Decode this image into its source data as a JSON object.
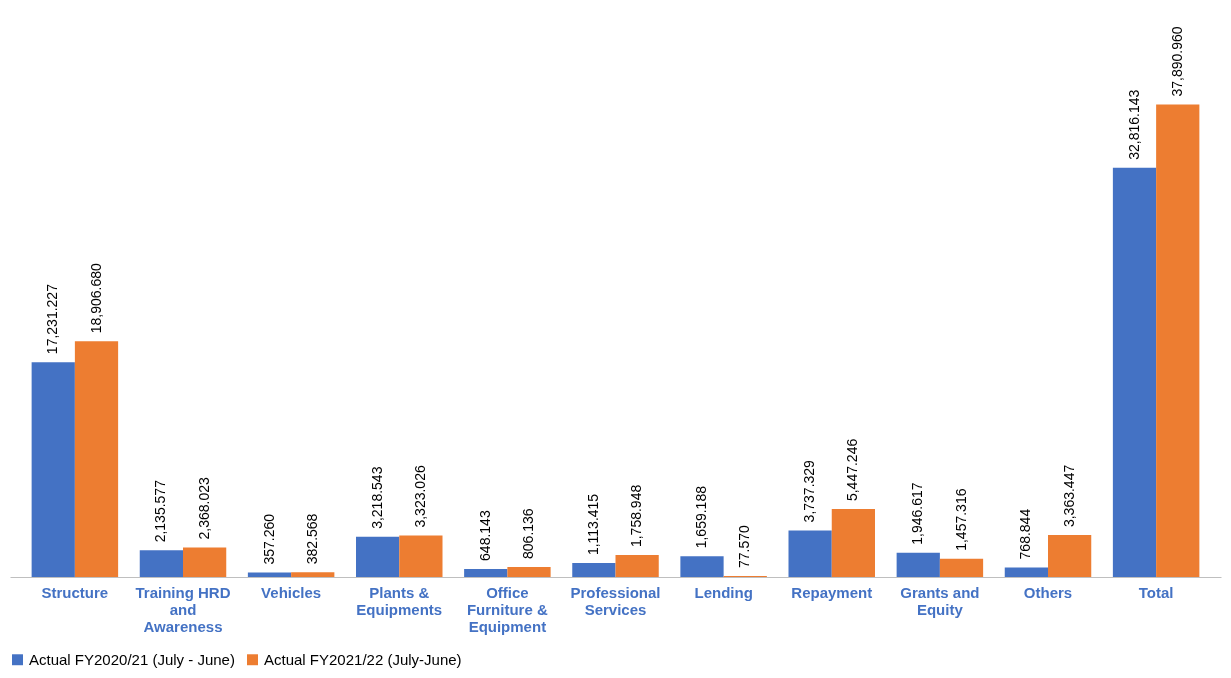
{
  "chart_data": {
    "type": "bar",
    "categories": [
      "Structure",
      "Training HRD and Awareness",
      "Vehicles",
      "Plants & Equipments",
      "Office Furniture & Equipment",
      "Professional Services",
      "Lending",
      "Repayment",
      "Grants and Equity",
      "Others",
      "Total"
    ],
    "series": [
      {
        "name": "Actual FY2020/21 (July - June)",
        "color": "#4472c4",
        "values": [
          17231.227,
          2135.577,
          357.26,
          3218.543,
          648.143,
          1113.415,
          1659.188,
          3737.329,
          1946.617,
          768.844,
          32816.143
        ],
        "value_labels": [
          "17,231.227",
          "2,135.577",
          "357.260",
          "3,218.543",
          "648.143",
          "1,113.415",
          "1,659.188",
          "3,737.329",
          "1,946.617",
          "768.844",
          "32,816.143"
        ]
      },
      {
        "name": "Actual FY2021/22 (July-June)",
        "color": "#ed7d31",
        "values": [
          18906.68,
          2368.023,
          382.568,
          3323.026,
          806.136,
          1758.948,
          77.57,
          5447.246,
          1457.316,
          3363.447,
          37890.96
        ],
        "value_labels": [
          "18,906.680",
          "2,368.023",
          "382.568",
          "3,323.026",
          "806.136",
          "1,758.948",
          "77.570",
          "5,447.246",
          "1,457.316",
          "3,363.447",
          "37,890.960"
        ]
      }
    ],
    "legend": "bottom",
    "grid": false
  }
}
